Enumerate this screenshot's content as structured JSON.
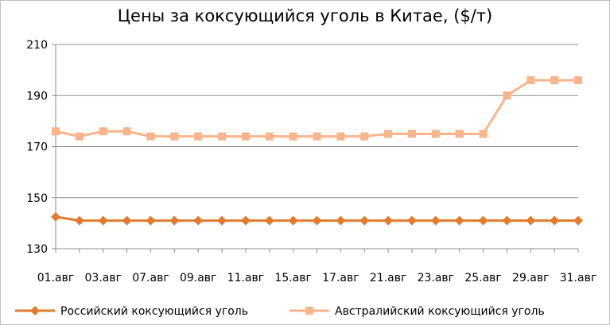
{
  "chart_data": {
    "type": "line",
    "title": "Цены за коксующийся уголь в Китае, ($/т)",
    "xlabel": "",
    "ylabel": "",
    "ylim": [
      130,
      210
    ],
    "y_ticks": [
      130,
      150,
      170,
      190,
      210
    ],
    "x_tick_labels": [
      "01.авг",
      "03.авг",
      "07.авг",
      "09.авг",
      "11.авг",
      "15.авг",
      "17.авг",
      "21.авг",
      "23.авг",
      "25.авг",
      "29.авг",
      "31.авг"
    ],
    "grid": "horizontal",
    "legend_placement": "bottom",
    "series": [
      {
        "name": "Российский коксующийся уголь",
        "color": "#E07B30",
        "marker": "diamond",
        "values": [
          142.5,
          141,
          141,
          141,
          141,
          141,
          141,
          141,
          141,
          141,
          141,
          141,
          141,
          141,
          141,
          141,
          141,
          141,
          141,
          141,
          141,
          141,
          141
        ]
      },
      {
        "name": "Австралийский коксующийся уголь",
        "color": "#F9B48A",
        "marker": "square",
        "values": [
          176,
          174,
          176,
          176,
          174,
          174,
          174,
          174,
          174,
          174,
          174,
          174,
          174,
          174,
          175,
          175,
          175,
          175,
          175,
          190,
          196,
          196,
          196
        ]
      }
    ]
  }
}
